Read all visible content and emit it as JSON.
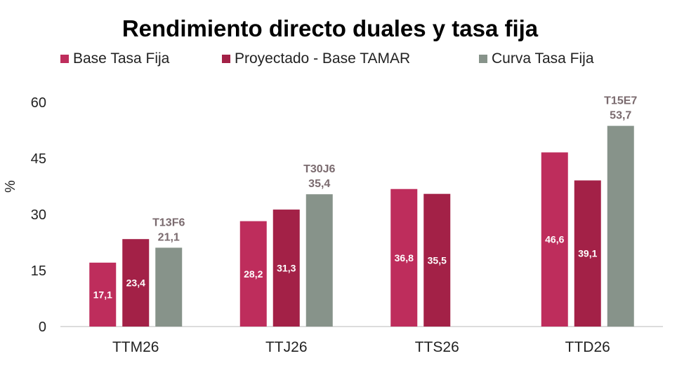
{
  "colors": {
    "base_tasa_fija": "#be2d5c",
    "proyectado_tamar": "#a32147",
    "curva_tasa_fija": "#87938a"
  },
  "chart_data": {
    "type": "bar",
    "title": "Rendimiento directo duales y tasa fija",
    "xlabel": "",
    "ylabel": "%",
    "ylim": [
      0,
      60
    ],
    "yticks": [
      0,
      15,
      30,
      45,
      60
    ],
    "grid": false,
    "legend_position": "top",
    "categories": [
      "TTM26",
      "TTJ26",
      "TTS26",
      "TTD26"
    ],
    "series": [
      {
        "name": "Base Tasa Fija",
        "values": [
          17.1,
          28.2,
          36.8,
          46.6
        ],
        "labels": [
          "17,1",
          "28,2",
          "36,8",
          "46,6"
        ]
      },
      {
        "name": "Proyectado - Base TAMAR",
        "values": [
          23.4,
          31.3,
          35.5,
          39.1
        ],
        "labels": [
          "23,4",
          "31,3",
          "35,5",
          "39,1"
        ]
      },
      {
        "name": "Curva Tasa Fija",
        "values": [
          21.1,
          35.4,
          null,
          53.7
        ],
        "labels": [
          "21,1",
          "35,4",
          null,
          "53,7"
        ],
        "bond_labels": [
          "T13F6",
          "T30J6",
          null,
          "T15E7"
        ]
      }
    ]
  }
}
